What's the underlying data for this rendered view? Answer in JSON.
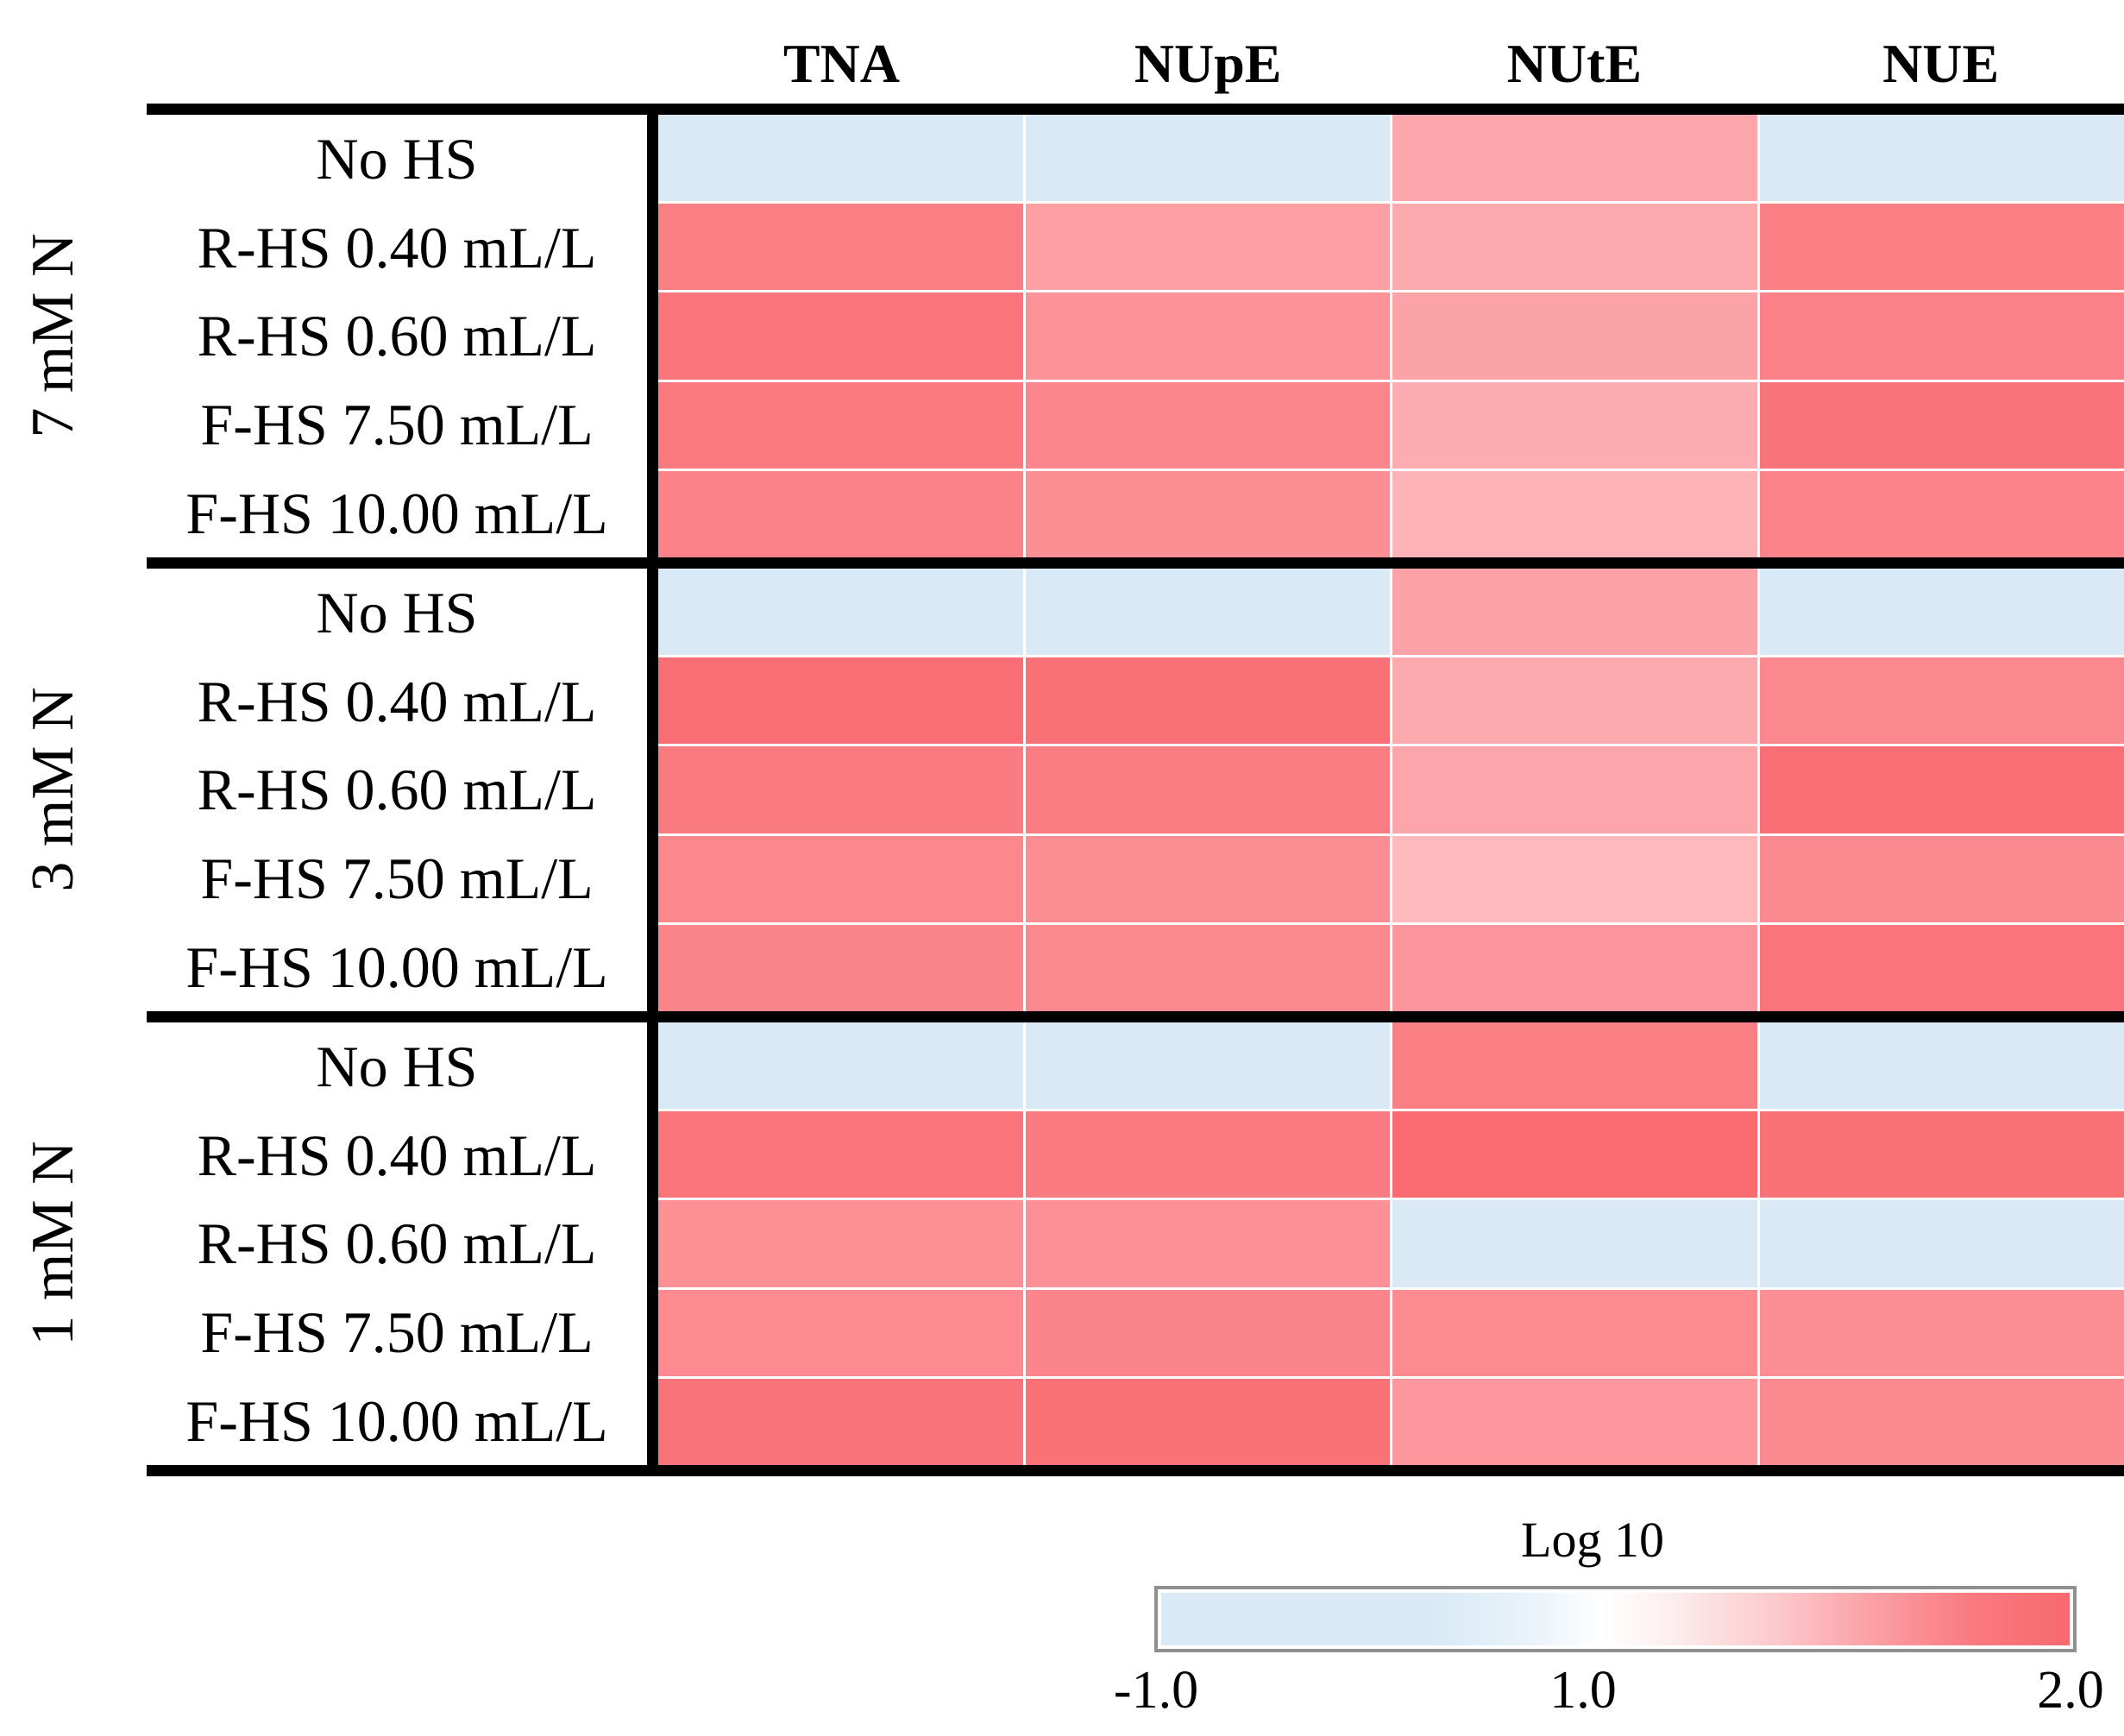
{
  "chart_data": {
    "type": "heatmap",
    "columns": [
      "TNA",
      "NUpE",
      "NUtE",
      "NUE"
    ],
    "row_labels": [
      "No HS",
      "R-HS 0.40 mL/L",
      "R-HS 0.60 mL/L",
      "F-HS 7.50 mL/L",
      "F-HS 10.00 mL/L"
    ],
    "row_groups": [
      {
        "label": "7 mM N",
        "rows": [
          "No HS",
          "R-HS 0.40 mL/L",
          "R-HS 0.60 mL/L",
          "F-HS 7.50 mL/L",
          "F-HS 10.00 mL/L"
        ],
        "cells": [
          [
            [
              "#d9eaf6",
              -0.5
            ],
            [
              "#d9eaf6",
              -0.5
            ],
            [
              "#fda6ab",
              1.59
            ],
            [
              "#d9eaf6",
              -0.5
            ]
          ],
          [
            [
              "#fa7f85",
              1.85
            ],
            [
              "#fe9fa4",
              1.64
            ],
            [
              "#fdaaae",
              1.57
            ],
            [
              "#fa8086",
              1.85
            ]
          ],
          [
            [
              "#f9757b",
              1.92
            ],
            [
              "#fc9398",
              1.72
            ],
            [
              "#fca3a8",
              1.61
            ],
            [
              "#fa8187",
              1.84
            ]
          ],
          [
            [
              "#fa7a80",
              1.89
            ],
            [
              "#fb868c",
              1.81
            ],
            [
              "#fdadb1",
              1.55
            ],
            [
              "#f9747a",
              1.93
            ]
          ],
          [
            [
              "#fb8288",
              1.83
            ],
            [
              "#fb8f94",
              1.75
            ],
            [
              "#feb3b7",
              1.51
            ],
            [
              "#fb8389",
              1.83
            ]
          ]
        ]
      },
      {
        "label": "3 mM N",
        "rows": [
          "No HS",
          "R-HS 0.40 mL/L",
          "R-HS 0.60 mL/L",
          "F-HS 7.50 mL/L",
          "F-HS 10.00 mL/L"
        ],
        "cells": [
          [
            [
              "#d9eaf6",
              -0.5
            ],
            [
              "#d9eaf6",
              -0.5
            ],
            [
              "#fda3a8",
              1.61
            ],
            [
              "#d9eaf6",
              -0.5
            ]
          ],
          [
            [
              "#f96e74",
              1.97
            ],
            [
              "#fa7077",
              1.95
            ],
            [
              "#fdaaaf",
              1.57
            ],
            [
              "#fb888e",
              1.79
            ]
          ],
          [
            [
              "#fa7c82",
              1.87
            ],
            [
              "#fa7d83",
              1.87
            ],
            [
              "#fca5aa",
              1.6
            ],
            [
              "#f96f75",
              1.96
            ]
          ],
          [
            [
              "#fc888e",
              1.79
            ],
            [
              "#fb8d93",
              1.76
            ],
            [
              "#feb9bc",
              1.47
            ],
            [
              "#fb8a90",
              1.78
            ]
          ],
          [
            [
              "#fb858b",
              1.81
            ],
            [
              "#fb8990",
              1.79
            ],
            [
              "#fb979c",
              1.69
            ],
            [
              "#f9757b",
              1.92
            ]
          ]
        ]
      },
      {
        "label": "1 mM N",
        "rows": [
          "No HS",
          "R-HS 0.40 mL/L",
          "R-HS 0.60 mL/L",
          "F-HS 7.50 mL/L",
          "F-HS 10.00 mL/L"
        ],
        "cells": [
          [
            [
              "#d9eaf6",
              -0.5
            ],
            [
              "#d9eaf6",
              -0.5
            ],
            [
              "#fa7f85",
              1.85
            ],
            [
              "#d9eaf6",
              -0.5
            ]
          ],
          [
            [
              "#f9757b",
              1.92
            ],
            [
              "#fa7b81",
              1.88
            ],
            [
              "#f96b71",
              1.99
            ],
            [
              "#f97278",
              1.94
            ]
          ],
          [
            [
              "#fc9095",
              1.74
            ],
            [
              "#fc9096",
              1.74
            ],
            [
              "#d9eaf6",
              -0.5
            ],
            [
              "#d9eaf6",
              -0.5
            ]
          ],
          [
            [
              "#fc8a90",
              1.78
            ],
            [
              "#fb858b",
              1.81
            ],
            [
              "#fb8b91",
              1.77
            ],
            [
              "#fb8e94",
              1.75
            ]
          ],
          [
            [
              "#f9737a",
              1.93
            ],
            [
              "#fa7278",
              1.94
            ],
            [
              "#fc989d",
              1.69
            ],
            [
              "#fb8990",
              1.79
            ]
          ]
        ]
      }
    ],
    "legend": {
      "title": "Log 10",
      "tick_labels": [
        "-1.0",
        "1.0",
        "2.0"
      ],
      "min": -1.0,
      "mid": 1.0,
      "max": 2.0,
      "color_low": "#d9eaf6",
      "color_mid": "#ffffff",
      "color_high": "#f8686f"
    },
    "colors": {
      "negative_cell": "#d9eaf6",
      "grid_line": "#000000",
      "legend_border": "#8f8f8f"
    },
    "layout": {
      "grid": "off",
      "legend_position": "bottom-right",
      "value_note": "cell values estimated from color scale (white = 1.0, blue end = -1.0, red end = 2.0)"
    }
  }
}
